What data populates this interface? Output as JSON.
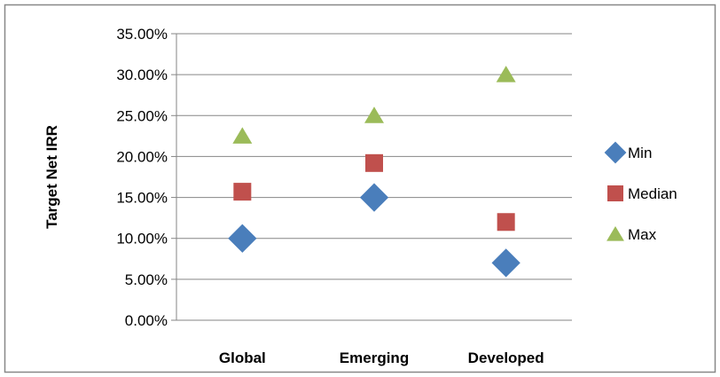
{
  "chart_data": {
    "type": "scatter",
    "categories": [
      "Global",
      "Emerging",
      "Developed"
    ],
    "ylabel": "Target Net IRR",
    "ylim": [
      0,
      0.35
    ],
    "y_ticks": [
      {
        "value": 0,
        "label": "0.00%"
      },
      {
        "value": 0.05,
        "label": "5.00%"
      },
      {
        "value": 0.1,
        "label": "10.00%"
      },
      {
        "value": 0.15,
        "label": "15.00%"
      },
      {
        "value": 0.2,
        "label": "20.00%"
      },
      {
        "value": 0.25,
        "label": "25.00%"
      },
      {
        "value": 0.3,
        "label": "30.00%"
      },
      {
        "value": 0.35,
        "label": "35.00%"
      }
    ],
    "grid": true,
    "legend_position": "right",
    "series": [
      {
        "name": "Min",
        "marker": "diamond",
        "color": "#4A7EBB",
        "values": [
          0.1,
          0.15,
          0.07
        ]
      },
      {
        "name": "Median",
        "marker": "square",
        "color": "#C0504D",
        "values": [
          0.157,
          0.192,
          0.12
        ]
      },
      {
        "name": "Max",
        "marker": "triangle",
        "color": "#9BBB59",
        "values": [
          0.225,
          0.25,
          0.3
        ]
      }
    ]
  }
}
